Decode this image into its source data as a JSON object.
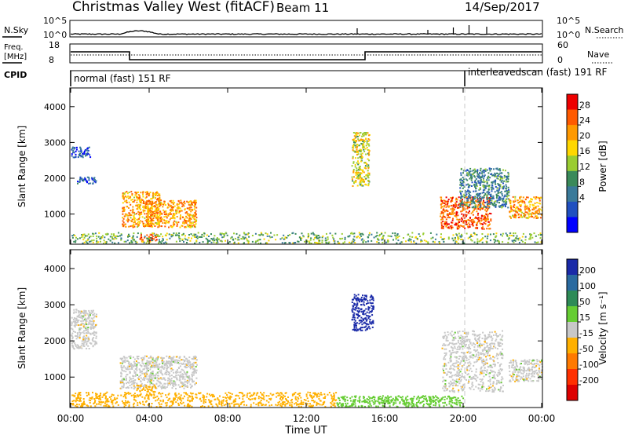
{
  "header": {
    "station": "Christmas Valley West (fitACF)",
    "beam": "Beam 11",
    "date": "14/Sep/2017"
  },
  "top_panels": {
    "nsky_label": "N.Sky",
    "nsearch_label": "N.Search",
    "noise_ticks_left": [
      "10^5",
      "10^0"
    ],
    "noise_ticks_right": [
      "10^5",
      "10^0"
    ],
    "freq_label_1": "Freq.",
    "freq_label_2": "[MHz]",
    "freq_ticks": [
      "18",
      "8"
    ],
    "nave_label": "Nave",
    "nave_ticks": [
      "60",
      "0"
    ],
    "cpid_label": "CPID",
    "cpid_segments": [
      {
        "label": "normal (fast) 151 RF",
        "start_hour": 0
      },
      {
        "label": "interleavedscan (fast) 191 RF",
        "start_hour": 20
      }
    ]
  },
  "power_panel": {
    "ylabel": "Slant Range [km]",
    "yticks": [
      "4000",
      "3000",
      "2000",
      "1000"
    ],
    "colorbar_label": "Power [dB]",
    "colorbar_ticks": [
      "28",
      "24",
      "20",
      "16",
      "12",
      "8",
      "4"
    ],
    "colorbar_colors": [
      "#0000ff",
      "#2050c0",
      "#3a7a9a",
      "#3a8a5a",
      "#9acd32",
      "#ffd700",
      "#ff9900",
      "#ff5a00",
      "#ee0000"
    ]
  },
  "velocity_panel": {
    "ylabel": "Slant Range [km]",
    "yticks": [
      "4000",
      "3000",
      "2000",
      "1000"
    ],
    "colorbar_label": "Velocity [m s⁻¹]",
    "colorbar_ticks": [
      "200",
      "100",
      "50",
      "15",
      "-15",
      "-50",
      "-100",
      "-200"
    ],
    "colorbar_colors": [
      "#1a2aa8",
      "#2a6aa0",
      "#2e8b57",
      "#66cd33",
      "#c8c8c8",
      "#ffb000",
      "#ff7a00",
      "#ff3000",
      "#dd0000"
    ]
  },
  "xaxis": {
    "label": "Time UT",
    "ticks": [
      "00:00",
      "04:00",
      "08:00",
      "12:00",
      "16:00",
      "20:00",
      "00:00"
    ]
  },
  "chart_data": {
    "type": "heatmap",
    "x_range_hours": [
      0,
      24
    ],
    "y_range_km": [
      180,
      4500
    ],
    "cpid_change_hour": 20,
    "frequency_mhz": [
      {
        "from_hour": 0,
        "to_hour": 3,
        "value": 15
      },
      {
        "from_hour": 3,
        "to_hour": 15,
        "value": 10
      },
      {
        "from_hour": 15,
        "to_hour": 24,
        "value": 15
      }
    ],
    "power_regions_db": [
      {
        "from_hour": 0.0,
        "to_hour": 1.0,
        "from_km": 2600,
        "to_km": 2900,
        "value": 8
      },
      {
        "from_hour": 0.3,
        "to_hour": 1.3,
        "from_km": 1850,
        "to_km": 2050,
        "value": 8
      },
      {
        "from_hour": 2.6,
        "to_hour": 4.6,
        "from_km": 650,
        "to_km": 1650,
        "value": 24
      },
      {
        "from_hour": 3.8,
        "to_hour": 6.4,
        "from_km": 650,
        "to_km": 1400,
        "value": 24
      },
      {
        "from_hour": 3.5,
        "to_hour": 4.4,
        "from_km": 250,
        "to_km": 450,
        "value": 28
      },
      {
        "from_hour": 0.0,
        "to_hour": 24.0,
        "from_km": 200,
        "to_km": 500,
        "value": 16
      },
      {
        "from_hour": 14.3,
        "to_hour": 15.2,
        "from_km": 1800,
        "to_km": 3300,
        "value": 20
      },
      {
        "from_hour": 18.8,
        "to_hour": 21.4,
        "from_km": 600,
        "to_km": 1500,
        "value": 28
      },
      {
        "from_hour": 19.8,
        "to_hour": 22.3,
        "from_km": 1200,
        "to_km": 2300,
        "value": 12
      },
      {
        "from_hour": 22.3,
        "to_hour": 24.0,
        "from_km": 900,
        "to_km": 1500,
        "value": 24
      }
    ],
    "velocity_regions_ms": [
      {
        "from_hour": 0.0,
        "to_hour": 1.3,
        "from_km": 1800,
        "to_km": 2900,
        "value": 0
      },
      {
        "from_hour": 2.5,
        "to_hour": 6.4,
        "from_km": 700,
        "to_km": 1600,
        "value": 0
      },
      {
        "from_hour": 3.3,
        "to_hour": 4.3,
        "from_km": 600,
        "to_km": 800,
        "value": -50
      },
      {
        "from_hour": 0.0,
        "to_hour": 13.5,
        "from_km": 200,
        "to_km": 600,
        "value": -50
      },
      {
        "from_hour": 13.5,
        "to_hour": 20.0,
        "from_km": 200,
        "to_km": 500,
        "value": 50
      },
      {
        "from_hour": 14.3,
        "to_hour": 15.4,
        "from_km": 2300,
        "to_km": 3300,
        "value": 200
      },
      {
        "from_hour": 18.9,
        "to_hour": 22.0,
        "from_km": 600,
        "to_km": 2300,
        "value": 0
      },
      {
        "from_hour": 22.3,
        "to_hour": 24.0,
        "from_km": 900,
        "to_km": 1500,
        "value": 0
      }
    ]
  }
}
